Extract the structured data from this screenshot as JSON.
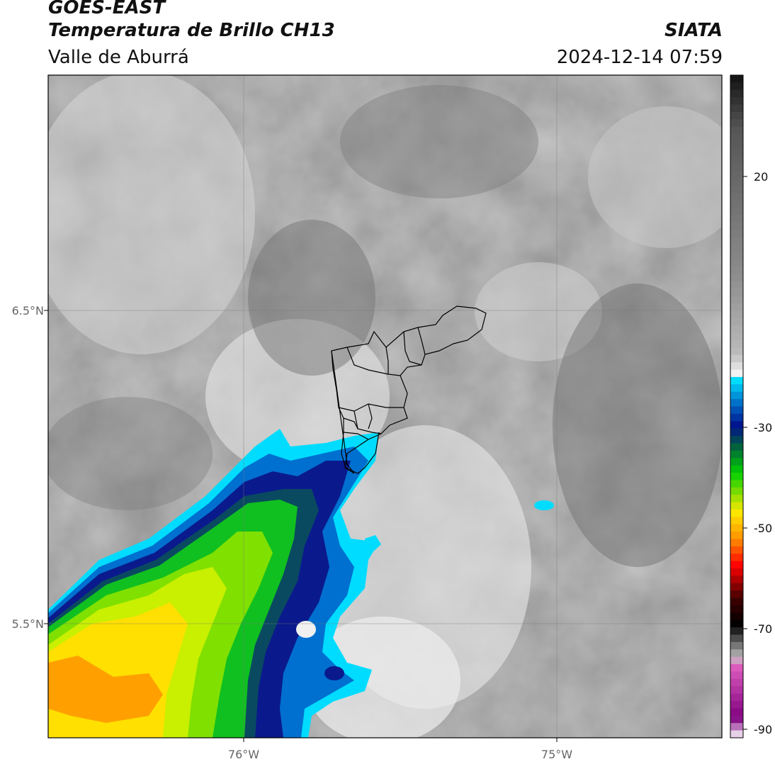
{
  "header": {
    "satellite": "GOES-EAST",
    "product": "Temperatura de Brillo CH13",
    "region": "Valle de Aburrá",
    "agency": "SIATA",
    "datetime": "2024-12-14 07:59"
  },
  "map": {
    "lat_ticks": [
      "6.5°N",
      "5.5°N"
    ],
    "lon_ticks": [
      "76°W",
      "75°W"
    ]
  },
  "colorbar": {
    "ticks": [
      "20",
      "-30",
      "-50",
      "-70",
      "-90"
    ],
    "colors": {
      "top_black": "#111111",
      "gray_mid": "#8c8c8c",
      "gray_light": "#f2f2f2",
      "cyan": "#00e0ff",
      "blue": "#0060c0",
      "navy": "#00108a",
      "green": "#00d000",
      "yellow": "#ffe800",
      "orange": "#ff9000",
      "red": "#ff0000",
      "dark_red": "#400000",
      "pink": "#e060c0",
      "purple": "#800080"
    }
  }
}
